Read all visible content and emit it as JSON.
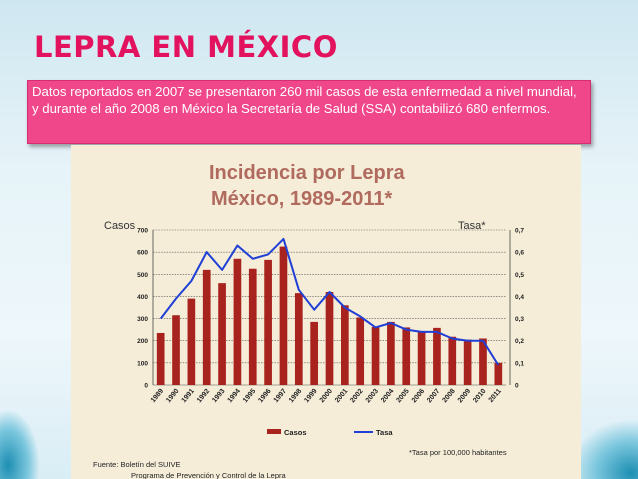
{
  "slide": {
    "title": "LEPRA EN MÉXICO",
    "info_text": "Datos reportados en  2007 se presentaron 260 mil casos de esta enfermedad a nivel mundial, y durante el año 2008 en México la Secretaría de Salud (SSA) contabilizó 680 enfermos."
  },
  "colors": {
    "title": "#e3125e",
    "info_box": "#f0468a",
    "bars": "#a8231e",
    "line": "#1f3fd6",
    "chart_title": "#b06a5e"
  },
  "chart_data": {
    "type": "bar",
    "title_line1": "Incidencia por Lepra",
    "title_line2": "México,  1989-2011*",
    "ylabel_left": "Casos",
    "ylabel_right": "Tasa*",
    "categories": [
      "1989",
      "1990",
      "1991",
      "1992",
      "1993",
      "1994",
      "1995",
      "1996",
      "1997",
      "1998",
      "1999",
      "2000",
      "2001",
      "2002",
      "2003",
      "2004",
      "2005",
      "2006",
      "2007",
      "2008",
      "2009",
      "2010",
      "2011"
    ],
    "series": [
      {
        "name": "Casos",
        "type": "bar",
        "axis": "left",
        "values": [
          235,
          315,
          390,
          520,
          460,
          570,
          525,
          565,
          625,
          415,
          285,
          420,
          360,
          305,
          262,
          285,
          260,
          240,
          258,
          218,
          205,
          210,
          100
        ]
      },
      {
        "name": "Tasa",
        "type": "line",
        "axis": "right",
        "values": [
          0.3,
          0.39,
          0.47,
          0.6,
          0.52,
          0.63,
          0.57,
          0.59,
          0.66,
          0.43,
          0.34,
          0.42,
          0.35,
          0.31,
          0.26,
          0.28,
          0.25,
          0.24,
          0.24,
          0.21,
          0.2,
          0.2,
          0.09
        ]
      }
    ],
    "ylim_left": [
      0,
      700
    ],
    "yticks_left": [
      "0",
      "100",
      "200",
      "300",
      "400",
      "500",
      "600",
      "700"
    ],
    "ylim_right": [
      0,
      0.7
    ],
    "yticks_right": [
      "0",
      "0,1",
      "0,2",
      "0,3",
      "0,4",
      "0,5",
      "0,6",
      "0,7"
    ],
    "legend": [
      "Casos",
      "Tasa"
    ],
    "footnote": "*Tasa por 100,000 habitantes",
    "source_line1": "Fuente:  Boletín del SUIVE",
    "source_line2": "Programa de Prevención y Control de la Lepra"
  }
}
